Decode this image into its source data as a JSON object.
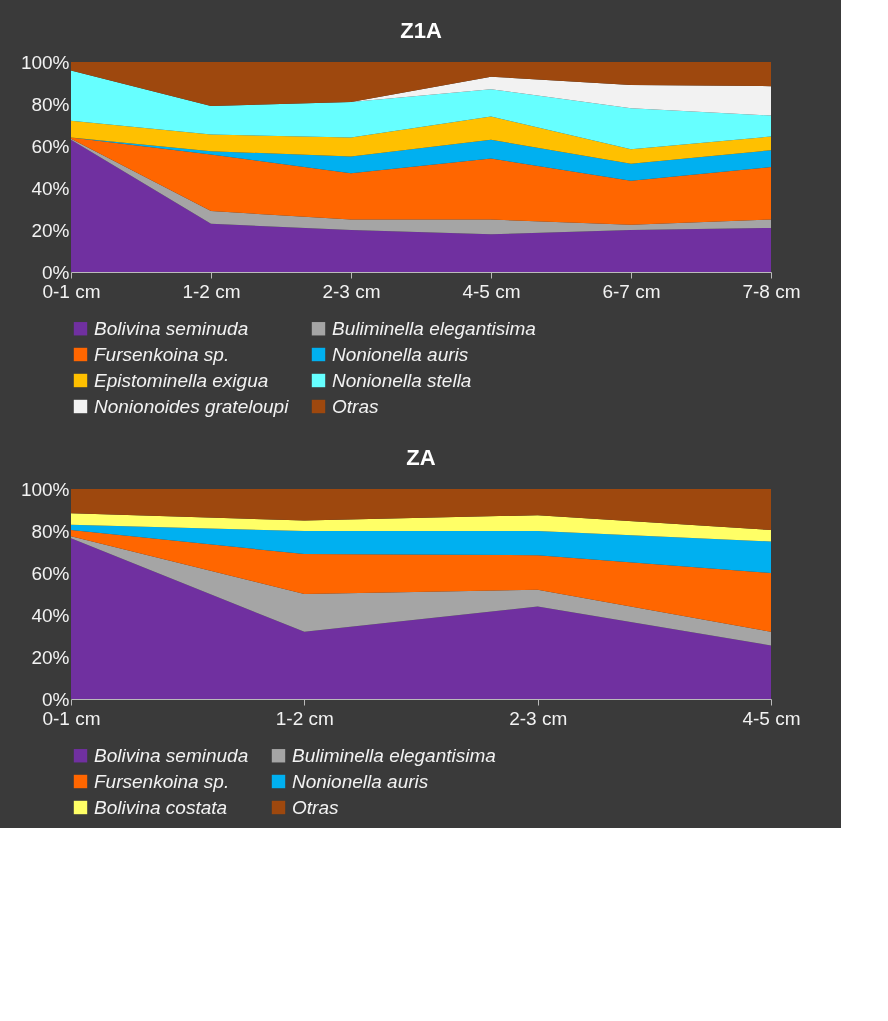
{
  "chart_data": [
    {
      "type": "area",
      "title": "Z1A",
      "stacked": true,
      "legend": "bottom",
      "categories": [
        "0-1 cm",
        "1-2 cm",
        "2-3 cm",
        "4-5 cm",
        "6-7 cm",
        "7-8 cm"
      ],
      "ylim": [
        0,
        100
      ],
      "yticks": [
        {
          "value": 0,
          "label": "0%"
        },
        {
          "value": 20,
          "label": "20%"
        },
        {
          "value": 40,
          "label": "40%"
        },
        {
          "value": 60,
          "label": "60%"
        },
        {
          "value": 80,
          "label": "80%"
        },
        {
          "value": 100,
          "label": "100%"
        }
      ],
      "series": [
        {
          "name": "Bolivina seminuda",
          "color": "#7030a0",
          "values": [
            63,
            23,
            20,
            18,
            20,
            21
          ]
        },
        {
          "name": "Buliminella elegantisima",
          "color": "#a5a5a5",
          "values": [
            0.5,
            6,
            5,
            7,
            2.5,
            4
          ]
        },
        {
          "name": "Fursenkoina sp.",
          "color": "#ff6600",
          "values": [
            0.5,
            27,
            22,
            29,
            21,
            25
          ]
        },
        {
          "name": "Nonionella auris",
          "color": "#00b0f0",
          "values": [
            0,
            1.5,
            8,
            9,
            8,
            8
          ]
        },
        {
          "name": "Epistominella exigua",
          "color": "#ffc000",
          "values": [
            8,
            8,
            9,
            11,
            7,
            6.5
          ]
        },
        {
          "name": "Nonionella stella",
          "color": "#66ffff",
          "values": [
            24,
            13.5,
            17,
            13,
            19.5,
            10
          ]
        },
        {
          "name": "Nonionoides grateloupi",
          "color": "#f2f2f2",
          "values": [
            0,
            0,
            0,
            6,
            11,
            14
          ]
        },
        {
          "name": "Otras",
          "color": "#9e480e",
          "values": [
            4,
            21,
            19,
            7,
            11,
            11.5
          ]
        }
      ]
    },
    {
      "type": "area",
      "title": "ZA",
      "stacked": true,
      "legend": "bottom",
      "categories": [
        "0-1 cm",
        "1-2 cm",
        "2-3 cm",
        "4-5 cm"
      ],
      "ylim": [
        0,
        100
      ],
      "yticks": [
        {
          "value": 0,
          "label": "0%"
        },
        {
          "value": 20,
          "label": "20%"
        },
        {
          "value": 40,
          "label": "40%"
        },
        {
          "value": 60,
          "label": "60%"
        },
        {
          "value": 80,
          "label": "80%"
        },
        {
          "value": 100,
          "label": "100%"
        }
      ],
      "series": [
        {
          "name": "Bolivina seminuda",
          "color": "#7030a0",
          "values": [
            76.5,
            32,
            44,
            25.5
          ]
        },
        {
          "name": "Buliminella elegantisima",
          "color": "#a5a5a5",
          "values": [
            1,
            18,
            8,
            6.5
          ]
        },
        {
          "name": "Fursenkoina sp.",
          "color": "#ff6600",
          "values": [
            3,
            19,
            16.5,
            28
          ]
        },
        {
          "name": "Nonionella auris",
          "color": "#00b0f0",
          "values": [
            2.5,
            11,
            11.5,
            15
          ]
        },
        {
          "name": "Bolivina costata",
          "color": "#ffff66",
          "values": [
            5.5,
            5,
            7.5,
            5.5
          ]
        },
        {
          "name": "Otras",
          "color": "#9e480e",
          "values": [
            11.5,
            15,
            12.5,
            19.5
          ]
        }
      ]
    }
  ]
}
